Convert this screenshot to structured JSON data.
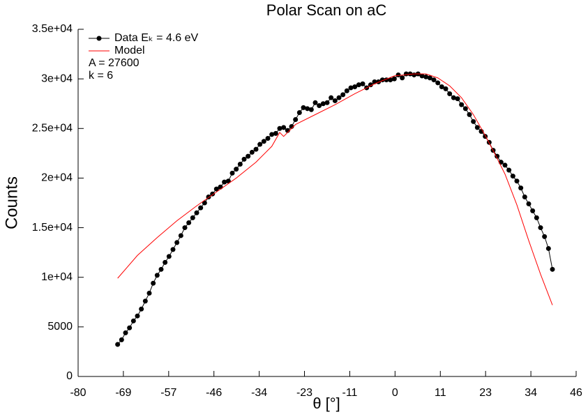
{
  "chart_data": {
    "type": "line",
    "title": "Polar Scan on aC",
    "x_label": "θ [°]",
    "y_label": "Counts",
    "xlim": [
      -80,
      46
    ],
    "xticks": [
      {
        "value": -80,
        "label": "-80"
      },
      {
        "value": -68.55,
        "label": "-69"
      },
      {
        "value": -57.09,
        "label": "-57"
      },
      {
        "value": -45.64,
        "label": "-46"
      },
      {
        "value": -34.18,
        "label": "-34"
      },
      {
        "value": -22.73,
        "label": "-23"
      },
      {
        "value": -11.27,
        "label": "-11"
      },
      {
        "value": 0.18,
        "label": "0"
      },
      {
        "value": 11.64,
        "label": "11"
      },
      {
        "value": 23.09,
        "label": "23"
      },
      {
        "value": 34.55,
        "label": "34"
      },
      {
        "value": 46,
        "label": "46"
      }
    ],
    "ylim": [
      0,
      35000
    ],
    "yticks": [
      0,
      5000,
      {
        "value": 10000,
        "label": "1e+04"
      },
      {
        "value": 15000,
        "label": "1.5e+04"
      },
      {
        "value": 20000,
        "label": "2e+04"
      },
      {
        "value": 25000,
        "label": "2.5e+04"
      },
      {
        "value": 30000,
        "label": "3e+04"
      },
      {
        "value": 35000,
        "label": "3.5e+04"
      }
    ],
    "annotations": [
      "A = 27600",
      "k = 6"
    ],
    "series": [
      {
        "name": "Data Eₖ = 4.6 eV",
        "color": "#000000",
        "marker": true,
        "x": [
          -70,
          -69,
          -68,
          -67,
          -66,
          -65,
          -64,
          -63,
          -62,
          -61,
          -60,
          -59,
          -58,
          -57,
          -56,
          -55,
          -54,
          -53,
          -52,
          -51,
          -50,
          -49,
          -48,
          -47,
          -46,
          -45,
          -44,
          -43,
          -42,
          -41,
          -40,
          -39,
          -38,
          -37,
          -36,
          -35,
          -34,
          -33,
          -32,
          -31,
          -30,
          -29,
          -28,
          -27,
          -26,
          -25,
          -24,
          -23,
          -22,
          -21,
          -20,
          -19,
          -18,
          -17,
          -16,
          -15,
          -14,
          -13,
          -12,
          -11,
          -10,
          -9,
          -8,
          -7,
          -6,
          -5,
          -4,
          -3,
          -2,
          -1,
          0,
          1,
          2,
          3,
          4,
          5,
          6,
          7,
          8,
          9,
          10,
          11,
          12,
          13,
          14,
          15,
          16,
          17,
          18,
          19,
          20,
          21,
          22,
          23,
          24,
          25,
          26,
          27,
          28,
          29,
          30,
          31,
          32,
          33,
          34,
          35,
          36,
          37,
          38,
          39,
          40
        ],
        "values": [
          3230,
          3700,
          4400,
          4900,
          5600,
          6100,
          6800,
          7600,
          8400,
          9400,
          10200,
          10800,
          11500,
          12100,
          12800,
          13500,
          14200,
          15000,
          15500,
          16000,
          16500,
          17000,
          17500,
          18100,
          18400,
          18900,
          19100,
          19600,
          19700,
          20500,
          20900,
          21400,
          21900,
          22200,
          22600,
          22900,
          23400,
          23700,
          24000,
          24400,
          24500,
          25000,
          25100,
          24800,
          25200,
          25900,
          26600,
          27100,
          27000,
          26900,
          27600,
          27300,
          27500,
          27600,
          28100,
          27800,
          28100,
          28400,
          28800,
          29100,
          29200,
          29400,
          29500,
          29100,
          29400,
          29700,
          29700,
          29900,
          29900,
          29900,
          30000,
          30400,
          30100,
          30500,
          30500,
          30400,
          30500,
          30300,
          30200,
          30100,
          29900,
          29600,
          29200,
          29000,
          28500,
          28100,
          28000,
          27400,
          27000,
          26400,
          25700,
          25100,
          24700,
          24200,
          23600,
          22800,
          22200,
          21600,
          21300,
          20800,
          20200,
          19700,
          19000,
          18100,
          17400,
          16700,
          16000,
          15000,
          14100,
          12900,
          10800
        ]
      },
      {
        "name": "Model",
        "color": "#ff0000",
        "marker": false,
        "x": [
          -70,
          -65,
          -60,
          -55,
          -50,
          -45,
          -40,
          -35,
          -31,
          -29,
          -28,
          -25,
          -20,
          -15,
          -10,
          -5,
          0,
          5,
          8,
          11,
          14,
          17,
          20,
          23,
          26,
          28,
          31,
          34,
          37,
          40
        ],
        "values": [
          9900,
          12200,
          14000,
          15700,
          17200,
          18600,
          20000,
          21600,
          23200,
          24600,
          24200,
          25400,
          26400,
          27400,
          28500,
          29500,
          30300,
          30500,
          30500,
          30100,
          29300,
          28100,
          26400,
          24300,
          22000,
          20400,
          17300,
          13700,
          10300,
          7200
        ]
      }
    ]
  }
}
